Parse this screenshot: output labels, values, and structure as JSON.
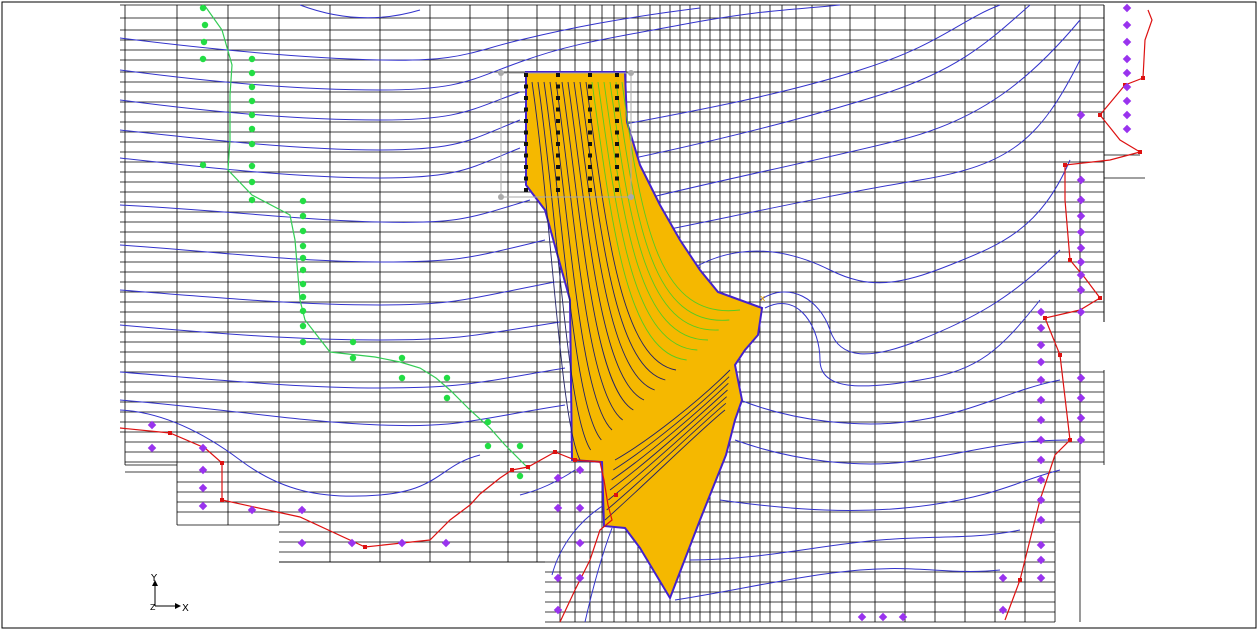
{
  "viewport": {
    "triad": {
      "y_label": "Y",
      "x_label": "X",
      "z_label": "Z"
    }
  },
  "colors": {
    "grid": "#000000",
    "contour": "#3333cc",
    "plume_fill": "#f5b800",
    "plume_outline": "#4422cc",
    "plume_contours_high": "#55cc22",
    "plume_contours_low": "#222266",
    "green_wells": "#22dd44",
    "green_polyline": "#33cc55",
    "red_boundary": "#dd1111",
    "purple_markers": "#9933ee",
    "selection_box": "#aaaaaa",
    "well_square": "#111111"
  }
}
